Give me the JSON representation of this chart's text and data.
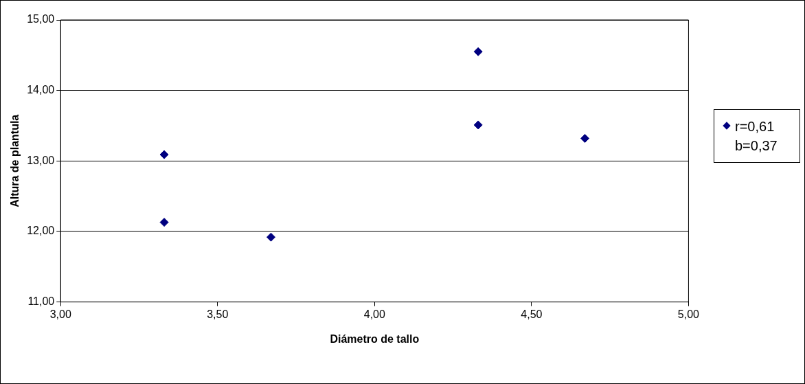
{
  "chart_data": {
    "type": "scatter",
    "xlabel": "Diámetro de tallo",
    "ylabel": "Altura de plantula",
    "x": [
      3.33,
      3.33,
      3.67,
      4.33,
      4.33,
      4.67
    ],
    "series": [
      {
        "name": "r=0,61\nb=0,37",
        "color": "#000080",
        "values": [
          13.09,
          12.13,
          11.92,
          14.55,
          13.51,
          13.32
        ]
      }
    ],
    "xlim": [
      3,
      5
    ],
    "xticks": [
      {
        "value": 3,
        "label": "3,00"
      },
      {
        "value": 3.5,
        "label": "3,50"
      },
      {
        "value": 4,
        "label": "4,00"
      },
      {
        "value": 4.5,
        "label": "4,50"
      },
      {
        "value": 5,
        "label": "5,00"
      }
    ],
    "ylim": [
      11,
      15
    ],
    "yticks": [
      {
        "value": 11,
        "label": "11,00"
      },
      {
        "value": 12,
        "label": "12,00"
      },
      {
        "value": 13,
        "label": "13,00"
      },
      {
        "value": 14,
        "label": "14,00"
      },
      {
        "value": 15,
        "label": "15,00"
      }
    ],
    "grid": "y",
    "legend": "right",
    "marker": "diamond"
  }
}
